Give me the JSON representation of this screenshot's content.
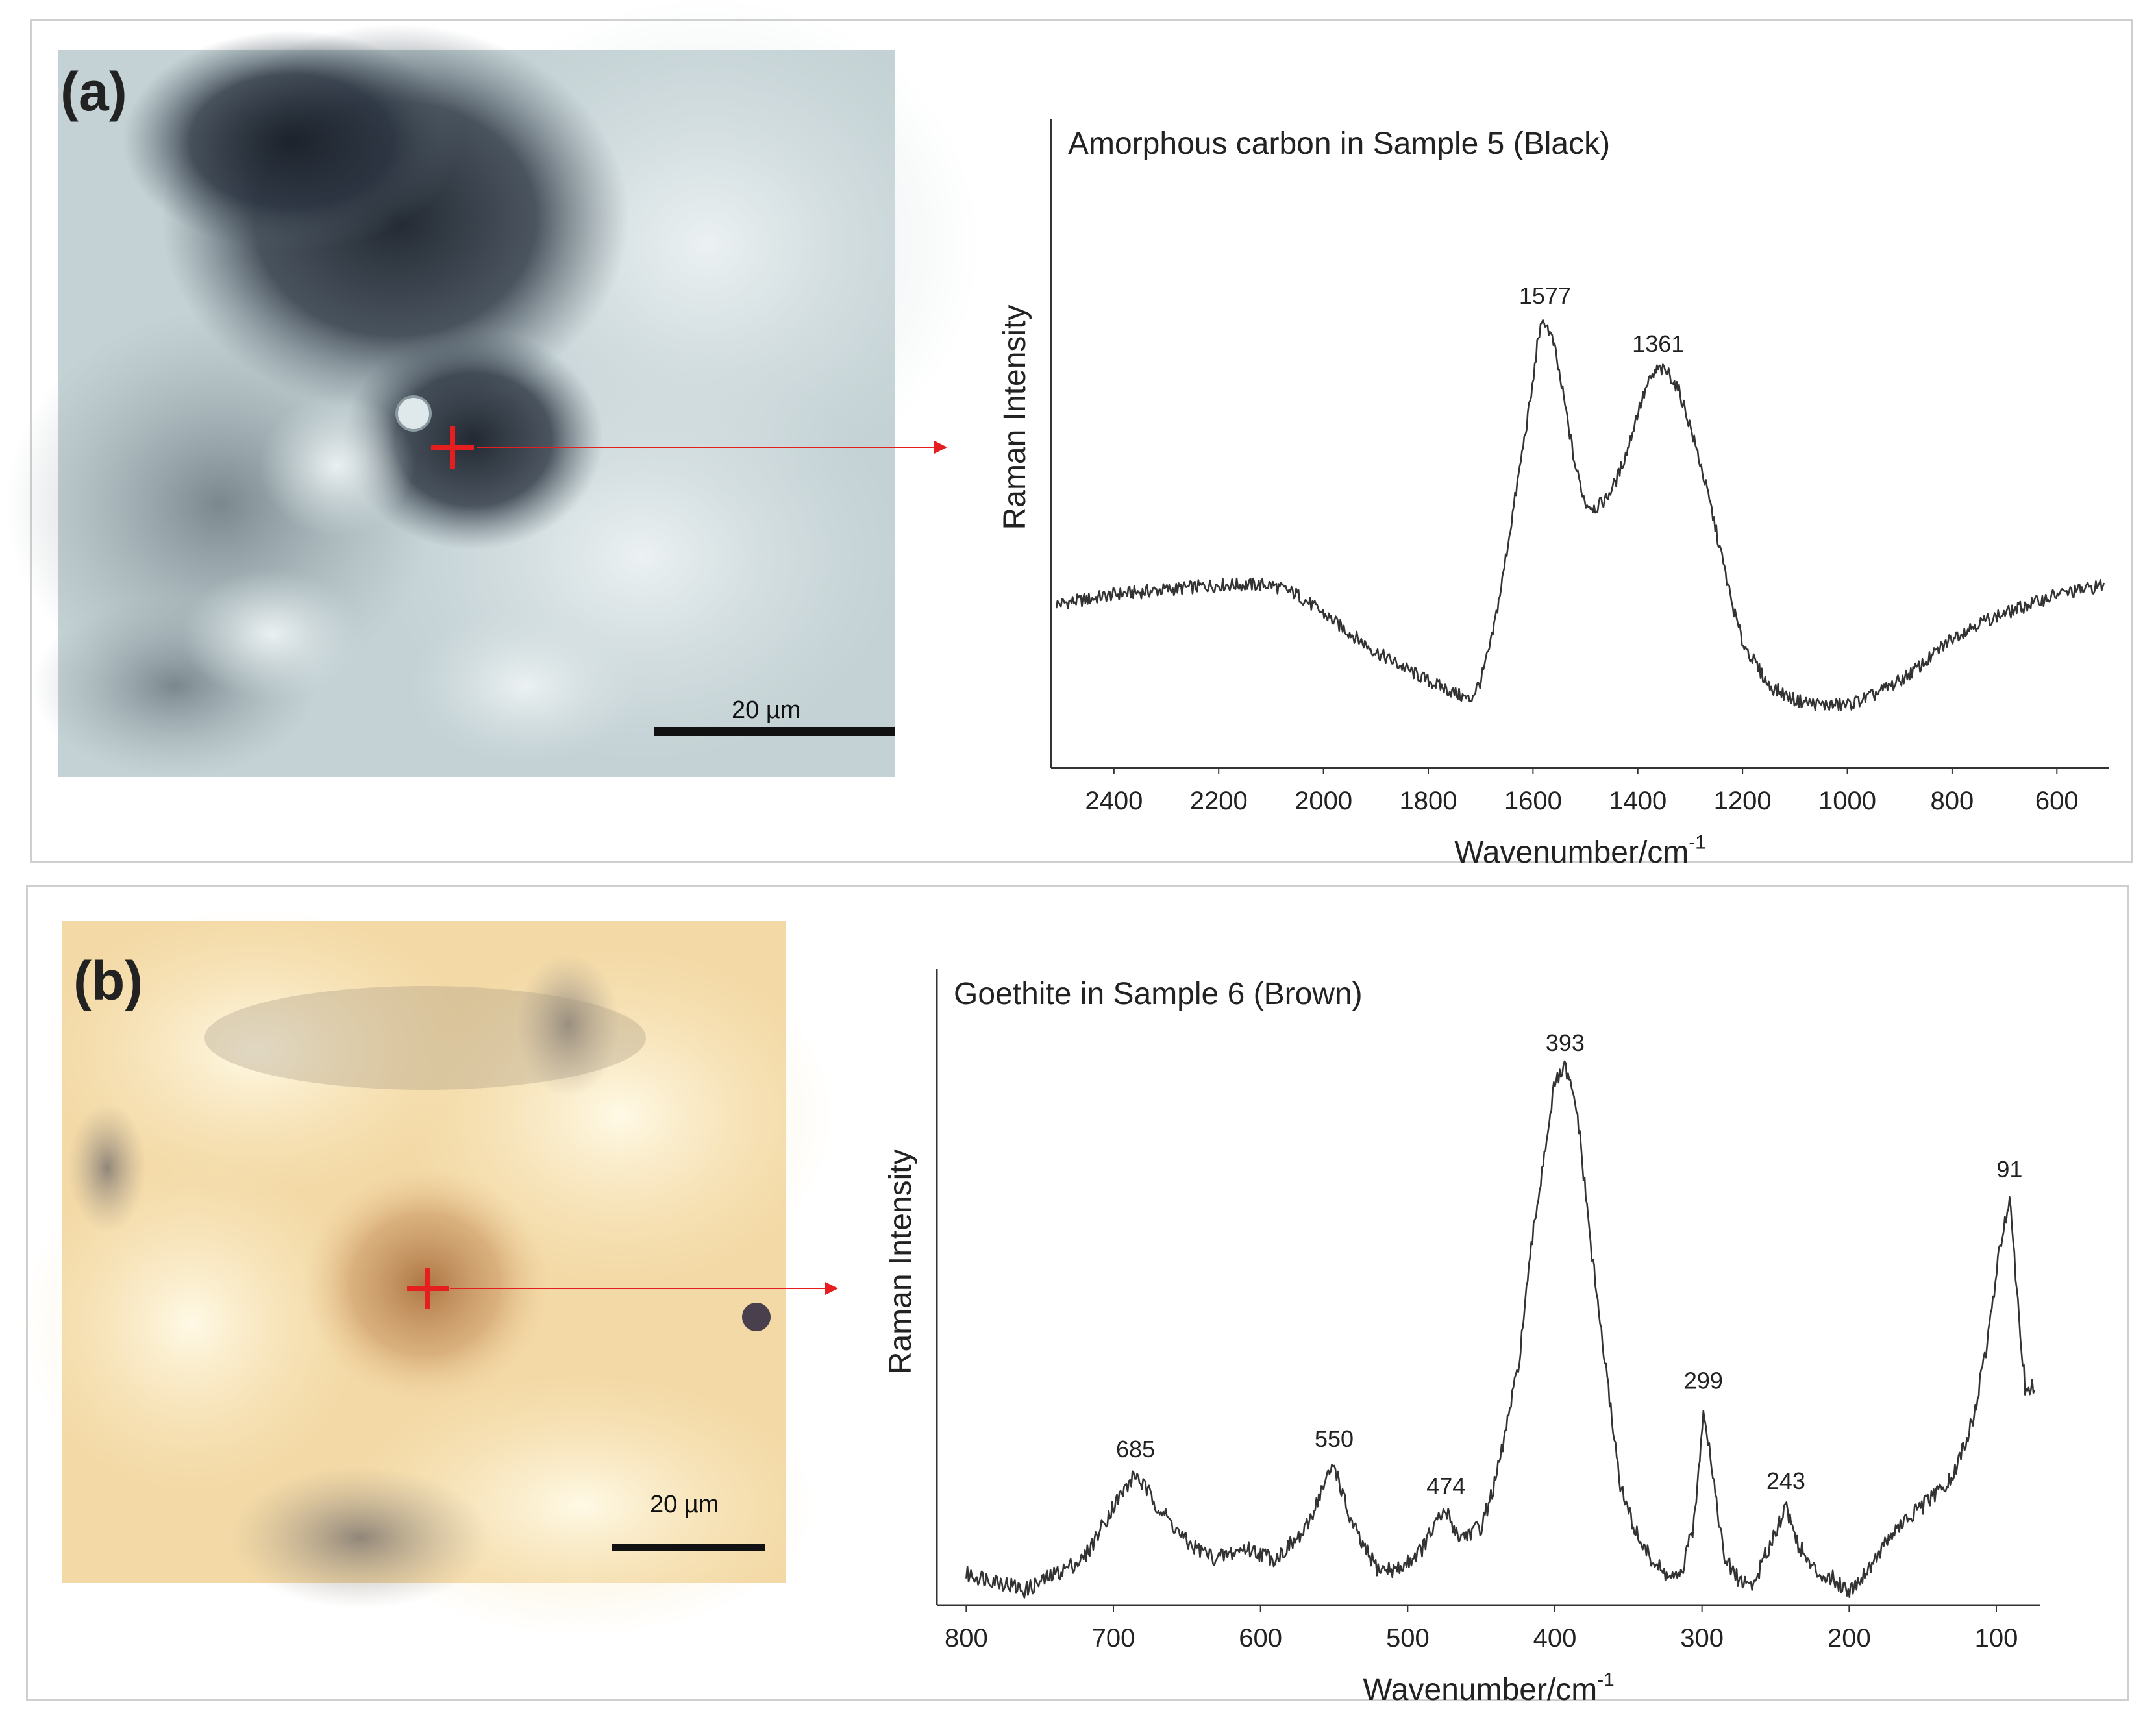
{
  "panels": [
    {
      "label": "(a)",
      "scale_bar": "20 µm",
      "micrograph": {
        "description_colors": {
          "matrix": "#c9d6d8",
          "particle": "#1f2630",
          "accent": "#e51f1f"
        }
      }
    },
    {
      "label": "(b)",
      "scale_bar": "20 µm",
      "micrograph": {
        "description_colors": {
          "matrix": "#f6dfae",
          "particle": "#b9825a",
          "accent": "#e51f1f"
        }
      }
    }
  ],
  "chart_data": [
    {
      "type": "line",
      "title": "Amorphous carbon in Sample 5 (Black)",
      "xlabel": "Wavenumber/cm",
      "xlabel_superscript": "-1",
      "ylabel": "Raman Intensity",
      "x_reversed": true,
      "xlim": [
        2520,
        500
      ],
      "ylim": [
        0,
        100
      ],
      "xticks": [
        2400,
        2200,
        2000,
        1800,
        1600,
        1400,
        1200,
        1000,
        800,
        600
      ],
      "grid": false,
      "line_color": "#333333",
      "peaks": [
        {
          "x": 1577,
          "label": "1577"
        },
        {
          "x": 1361,
          "label": "1361"
        }
      ],
      "x": [
        2510,
        2450,
        2400,
        2300,
        2200,
        2100,
        2050,
        2000,
        1950,
        1900,
        1850,
        1800,
        1760,
        1720,
        1700,
        1680,
        1660,
        1640,
        1620,
        1600,
        1590,
        1577,
        1560,
        1540,
        1520,
        1500,
        1480,
        1460,
        1440,
        1420,
        1400,
        1380,
        1361,
        1340,
        1320,
        1300,
        1280,
        1260,
        1240,
        1220,
        1200,
        1150,
        1100,
        1050,
        1000,
        950,
        900,
        850,
        800,
        750,
        700,
        650,
        600,
        550,
        510
      ],
      "y": [
        26,
        27,
        28,
        29,
        30,
        30,
        28,
        24,
        20,
        16,
        13,
        10,
        8,
        6,
        10,
        18,
        30,
        44,
        58,
        72,
        82,
        85,
        80,
        68,
        55,
        47,
        46,
        48,
        52,
        58,
        66,
        72,
        75,
        74,
        70,
        63,
        55,
        46,
        36,
        26,
        18,
        9,
        6,
        5,
        5,
        7,
        10,
        14,
        19,
        22,
        24,
        26,
        28,
        29,
        30
      ]
    },
    {
      "type": "line",
      "title": "Goethite in Sample 6 (Brown)",
      "xlabel": "Wavenumber/cm",
      "xlabel_superscript": "-1",
      "ylabel": "Raman Intensity",
      "x_reversed": true,
      "xlim": [
        820,
        70
      ],
      "ylim": [
        0,
        100
      ],
      "xticks": [
        800,
        700,
        600,
        500,
        400,
        300,
        200,
        100
      ],
      "grid": false,
      "line_color": "#333333",
      "peaks": [
        {
          "x": 685,
          "label": "685"
        },
        {
          "x": 550,
          "label": "550"
        },
        {
          "x": 474,
          "label": "474"
        },
        {
          "x": 393,
          "label": "393"
        },
        {
          "x": 299,
          "label": "299"
        },
        {
          "x": 243,
          "label": "243"
        },
        {
          "x": 91,
          "label": "91"
        }
      ],
      "x": [
        800,
        780,
        760,
        740,
        720,
        700,
        690,
        685,
        670,
        650,
        630,
        610,
        590,
        570,
        560,
        550,
        540,
        530,
        520,
        505,
        490,
        480,
        474,
        465,
        450,
        440,
        425,
        415,
        405,
        400,
        393,
        385,
        375,
        365,
        355,
        345,
        335,
        325,
        315,
        305,
        299,
        293,
        285,
        275,
        265,
        255,
        243,
        235,
        225,
        210,
        200,
        190,
        170,
        150,
        130,
        115,
        105,
        98,
        91,
        86,
        80,
        74
      ],
      "y": [
        4,
        3,
        1,
        4,
        7,
        17,
        21,
        23,
        17,
        10,
        7,
        9,
        7,
        12,
        19,
        25,
        15,
        9,
        5,
        5,
        9,
        14,
        16,
        11,
        13,
        22,
        43,
        68,
        88,
        97,
        100,
        92,
        65,
        42,
        20,
        12,
        7,
        4,
        3,
        14,
        36,
        24,
        7,
        3,
        2,
        9,
        17,
        10,
        5,
        3,
        1,
        4,
        12,
        17,
        22,
        34,
        50,
        65,
        76,
        58,
        38,
        40
      ]
    }
  ]
}
